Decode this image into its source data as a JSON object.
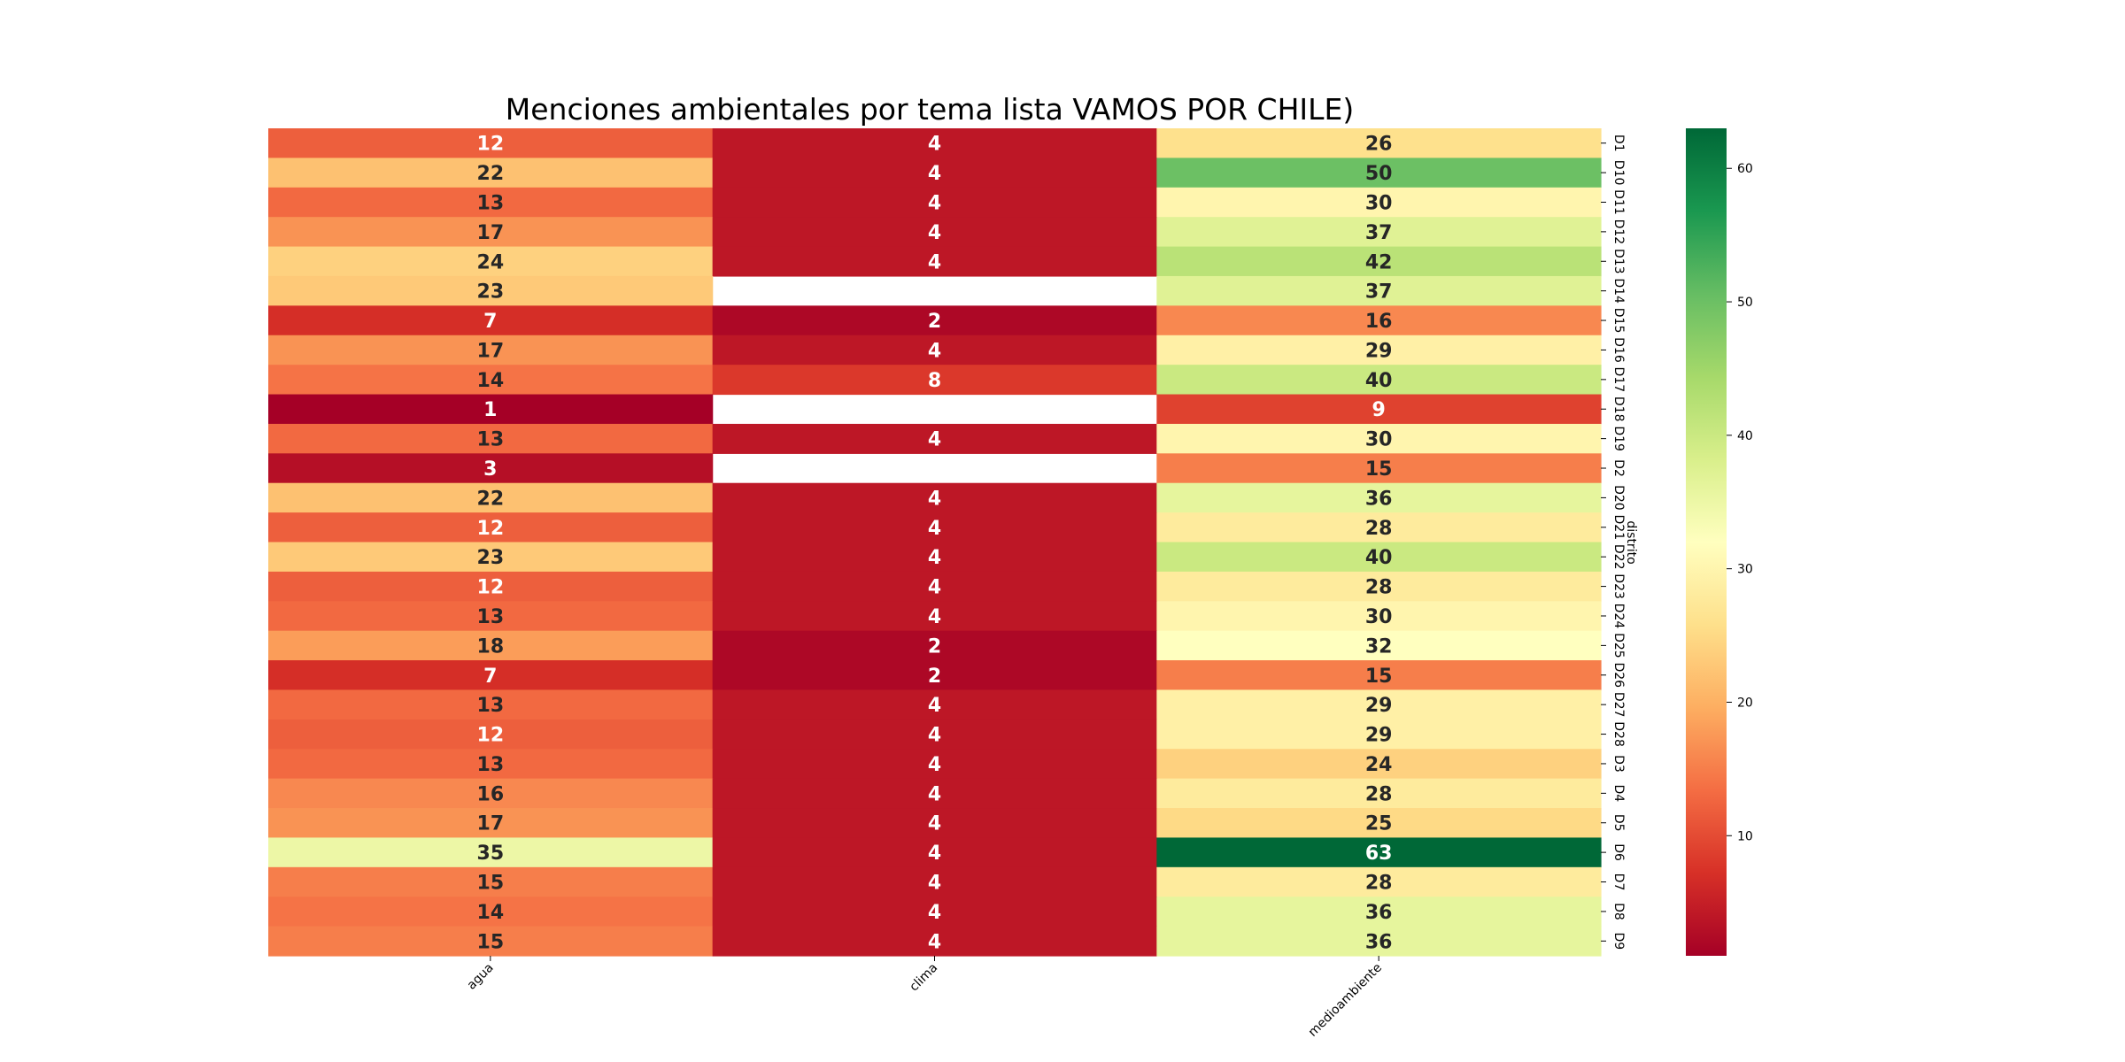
{
  "chart_data": {
    "type": "heatmap",
    "title": "Menciones ambientales por tema lista VAMOS POR CHILE)",
    "xlabel": "",
    "ylabel": "distrito",
    "x_categories": [
      "agua",
      "clima",
      "medioambiente"
    ],
    "y_categories": [
      "D1",
      "D10",
      "D11",
      "D12",
      "D13",
      "D14",
      "D15",
      "D16",
      "D17",
      "D18",
      "D19",
      "D2",
      "D20",
      "D21",
      "D22",
      "D23",
      "D24",
      "D25",
      "D26",
      "D27",
      "D28",
      "D3",
      "D4",
      "D5",
      "D6",
      "D7",
      "D8",
      "D9"
    ],
    "values": [
      [
        12,
        4,
        26
      ],
      [
        22,
        4,
        50
      ],
      [
        13,
        4,
        30
      ],
      [
        17,
        4,
        37
      ],
      [
        24,
        4,
        42
      ],
      [
        23,
        null,
        37
      ],
      [
        7,
        2,
        16
      ],
      [
        17,
        4,
        29
      ],
      [
        14,
        8,
        40
      ],
      [
        1,
        null,
        9
      ],
      [
        13,
        4,
        30
      ],
      [
        3,
        null,
        15
      ],
      [
        22,
        4,
        36
      ],
      [
        12,
        4,
        28
      ],
      [
        23,
        4,
        40
      ],
      [
        12,
        4,
        28
      ],
      [
        13,
        4,
        30
      ],
      [
        18,
        2,
        32
      ],
      [
        7,
        2,
        15
      ],
      [
        13,
        4,
        29
      ],
      [
        12,
        4,
        29
      ],
      [
        13,
        4,
        24
      ],
      [
        16,
        4,
        28
      ],
      [
        17,
        4,
        25
      ],
      [
        35,
        4,
        63
      ],
      [
        15,
        4,
        28
      ],
      [
        14,
        4,
        36
      ],
      [
        15,
        4,
        36
      ]
    ],
    "colormap": "RdYlGn",
    "colorbar": {
      "range": [
        1,
        63
      ],
      "ticks": [
        10,
        20,
        30,
        40,
        50,
        60
      ]
    }
  }
}
